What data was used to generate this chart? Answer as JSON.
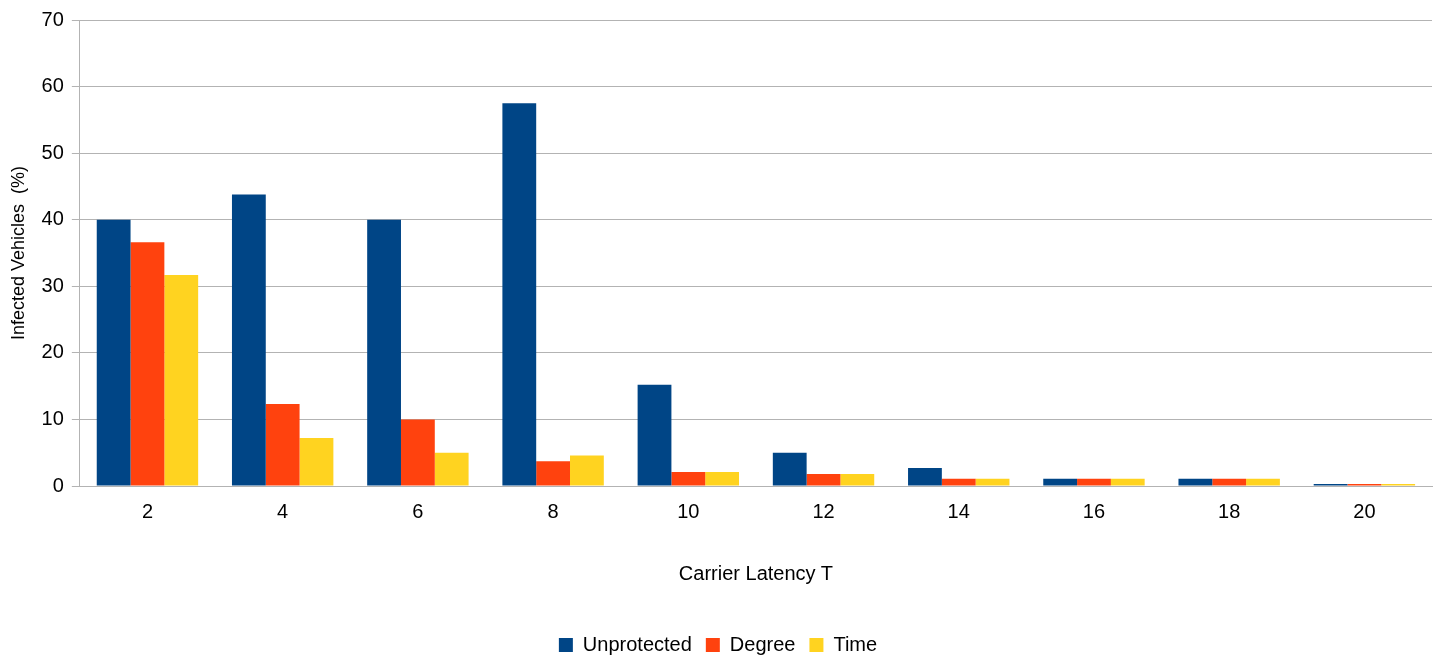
{
  "chart_data": {
    "type": "bar",
    "xlabel": "Carrier Latency T",
    "ylabel": "Infected Vehicles  (%)",
    "categories": [
      "2",
      "4",
      "6",
      "8",
      "10",
      "12",
      "14",
      "16",
      "18",
      "20"
    ],
    "series": [
      {
        "name": "Unprotected",
        "color": "#004586",
        "values": [
          40,
          43.8,
          40,
          57.5,
          15.2,
          5,
          2.7,
          1.1,
          1.1,
          0.3
        ]
      },
      {
        "name": "Degree",
        "color": "#ff420e",
        "values": [
          36.6,
          12.3,
          10,
          3.7,
          2.1,
          1.8,
          1.1,
          1.1,
          1.1,
          0.3
        ]
      },
      {
        "name": "Time",
        "color": "#ffd320",
        "values": [
          31.7,
          7.2,
          5,
          4.6,
          2.1,
          1.8,
          1.1,
          1.1,
          1.1,
          0.3
        ]
      }
    ],
    "ylim": [
      0,
      70
    ],
    "yticks": [
      0,
      10,
      20,
      30,
      40,
      50,
      60,
      70
    ],
    "grid": "y",
    "legend": "bottom"
  }
}
